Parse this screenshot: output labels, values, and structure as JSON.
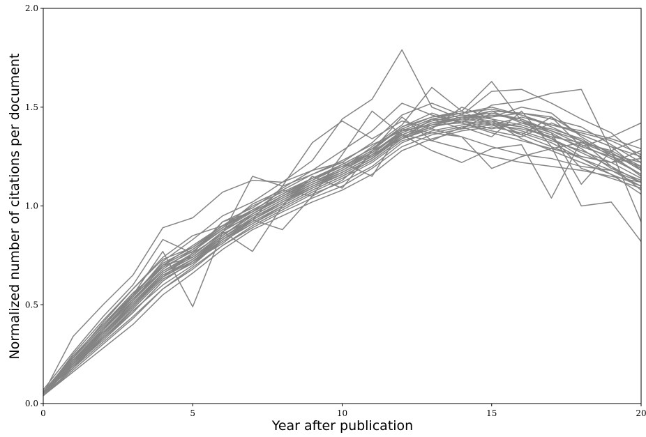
{
  "chart_data": {
    "type": "line",
    "title": "",
    "xlabel": "Year after publication",
    "ylabel": "Normalized number of citations per document",
    "xlim": [
      0,
      20
    ],
    "ylim": [
      0.0,
      2.0
    ],
    "x_ticks": [
      0,
      5,
      10,
      15,
      20
    ],
    "x_tick_labels": [
      "0",
      "5",
      "10",
      "15",
      "20"
    ],
    "y_ticks": [
      0.0,
      0.5,
      1.0,
      1.5,
      2.0
    ],
    "y_tick_labels": [
      "0.0",
      "0.5",
      "1.0",
      "1.5",
      "2.0"
    ],
    "grid": false,
    "legend": "none",
    "line_color": "#848484",
    "x": [
      0,
      1,
      2,
      3,
      4,
      5,
      6,
      7,
      8,
      9,
      10,
      11,
      12,
      13,
      14,
      15,
      16,
      17,
      18,
      19,
      20
    ],
    "series": [
      {
        "values": [
          0.05,
          0.2,
          0.33,
          0.46,
          0.62,
          0.72,
          0.84,
          0.94,
          1.02,
          1.09,
          1.16,
          1.24,
          1.36,
          1.42,
          1.45,
          1.47,
          1.44,
          1.38,
          1.31,
          1.24,
          1.16
        ]
      },
      {
        "values": [
          0.06,
          0.22,
          0.36,
          0.5,
          0.66,
          0.75,
          0.87,
          0.96,
          1.04,
          1.12,
          1.18,
          1.26,
          1.38,
          1.44,
          1.47,
          1.49,
          1.46,
          1.4,
          1.33,
          1.27,
          1.19
        ]
      },
      {
        "values": [
          0.04,
          0.17,
          0.3,
          0.43,
          0.58,
          0.69,
          0.8,
          0.9,
          0.98,
          1.06,
          1.12,
          1.2,
          1.32,
          1.38,
          1.41,
          1.43,
          1.4,
          1.34,
          1.27,
          1.2,
          1.12
        ]
      },
      {
        "values": [
          0.05,
          0.34,
          0.5,
          0.65,
          0.89,
          0.94,
          1.07,
          1.13,
          1.12,
          1.23,
          1.44,
          1.54,
          1.79,
          1.5,
          1.44,
          1.48,
          1.47,
          1.45,
          1.36,
          1.3,
          1.18
        ]
      },
      {
        "values": [
          0.07,
          0.26,
          0.44,
          0.6,
          0.83,
          0.76,
          0.92,
          0.99,
          1.09,
          1.18,
          1.22,
          1.32,
          1.46,
          1.52,
          1.46,
          1.58,
          1.59,
          1.52,
          1.44,
          1.37,
          1.24
        ]
      },
      {
        "values": [
          0.05,
          0.2,
          0.37,
          0.55,
          0.77,
          0.49,
          0.87,
          0.77,
          1.0,
          1.15,
          1.09,
          1.28,
          1.45,
          1.33,
          1.4,
          1.35,
          1.48,
          1.3,
          1.0,
          1.02,
          0.82
        ]
      },
      {
        "values": [
          0.06,
          0.23,
          0.41,
          0.58,
          0.74,
          0.85,
          0.9,
          1.0,
          1.07,
          1.14,
          1.2,
          1.28,
          1.4,
          1.47,
          1.42,
          1.51,
          1.53,
          1.57,
          1.59,
          1.28,
          0.92
        ]
      },
      {
        "values": [
          0.05,
          0.19,
          0.32,
          0.46,
          0.62,
          0.72,
          0.81,
          0.93,
          1.1,
          1.32,
          1.43,
          1.34,
          1.43,
          1.39,
          1.5,
          1.44,
          1.36,
          1.45,
          1.3,
          1.35,
          1.42
        ]
      },
      {
        "values": [
          0.05,
          0.21,
          0.36,
          0.5,
          0.64,
          0.73,
          0.85,
          0.96,
          1.05,
          1.12,
          1.19,
          1.3,
          1.41,
          1.6,
          1.48,
          1.63,
          1.43,
          1.34,
          1.25,
          1.22,
          1.28
        ]
      },
      {
        "values": [
          0.04,
          0.16,
          0.28,
          0.4,
          0.55,
          0.66,
          0.78,
          0.88,
          0.95,
          1.02,
          1.08,
          1.16,
          1.28,
          1.34,
          1.38,
          1.4,
          1.37,
          1.32,
          1.24,
          1.18,
          1.1
        ]
      },
      {
        "values": [
          0.06,
          0.24,
          0.4,
          0.55,
          0.7,
          0.8,
          0.9,
          0.98,
          1.06,
          1.13,
          1.2,
          1.27,
          1.37,
          1.43,
          1.46,
          1.44,
          1.41,
          1.36,
          1.3,
          1.25,
          1.2
        ]
      },
      {
        "values": [
          0.05,
          0.22,
          0.38,
          0.53,
          0.68,
          0.78,
          0.88,
          0.95,
          1.03,
          1.1,
          1.17,
          1.25,
          1.35,
          1.4,
          1.43,
          1.45,
          1.5,
          1.47,
          1.35,
          1.26,
          1.15
        ]
      },
      {
        "values": [
          0.06,
          0.2,
          0.35,
          0.52,
          0.7,
          0.74,
          0.86,
          1.15,
          1.1,
          1.16,
          1.22,
          1.15,
          1.39,
          1.37,
          1.35,
          1.3,
          1.26,
          1.24,
          1.2,
          1.18,
          1.12
        ]
      },
      {
        "values": [
          0.04,
          0.18,
          0.34,
          0.49,
          0.64,
          0.76,
          0.92,
          0.97,
          1.08,
          1.05,
          1.26,
          1.48,
          1.36,
          1.28,
          1.22,
          1.29,
          1.31,
          1.04,
          1.33,
          1.2,
          1.08
        ]
      },
      {
        "values": [
          0.06,
          0.21,
          0.38,
          0.54,
          0.72,
          0.83,
          0.95,
          1.02,
          1.12,
          1.18,
          1.28,
          1.38,
          1.52,
          1.46,
          1.42,
          1.37,
          1.33,
          1.29,
          1.25,
          1.22,
          1.24
        ]
      },
      {
        "values": [
          0.05,
          0.19,
          0.33,
          0.47,
          0.6,
          0.7,
          0.83,
          0.91,
          0.99,
          1.07,
          1.14,
          1.22,
          1.33,
          1.37,
          1.4,
          1.42,
          1.38,
          1.33,
          1.28,
          1.22,
          1.14
        ]
      },
      {
        "values": [
          0.05,
          0.25,
          0.42,
          0.58,
          0.73,
          0.79,
          0.89,
          1.01,
          1.08,
          1.16,
          1.23,
          1.31,
          1.38,
          1.41,
          1.44,
          1.46,
          1.44,
          1.37,
          1.11,
          1.28,
          1.34
        ]
      },
      {
        "values": [
          0.06,
          0.18,
          0.31,
          0.44,
          0.58,
          0.68,
          0.8,
          0.89,
          0.97,
          1.04,
          1.1,
          1.19,
          1.3,
          1.36,
          1.39,
          1.41,
          1.36,
          1.3,
          1.24,
          1.16,
          1.06
        ]
      },
      {
        "values": [
          0.05,
          0.23,
          0.39,
          0.55,
          0.71,
          0.79,
          0.9,
          0.97,
          1.05,
          1.13,
          1.21,
          1.29,
          1.39,
          1.45,
          1.48,
          1.41,
          1.45,
          1.41,
          1.38,
          1.34,
          1.29
        ]
      },
      {
        "values": [
          0.04,
          0.2,
          0.34,
          0.5,
          0.65,
          0.73,
          0.84,
          0.93,
          1.01,
          1.09,
          1.16,
          1.24,
          1.35,
          1.41,
          1.42,
          1.38,
          1.35,
          1.42,
          1.36,
          1.3,
          1.25
        ]
      },
      {
        "values": [
          0.06,
          0.22,
          0.37,
          0.52,
          0.67,
          0.76,
          0.86,
          0.93,
          0.88,
          1.05,
          1.13,
          1.26,
          1.34,
          1.44,
          1.43,
          1.39,
          1.42,
          1.37,
          1.29,
          1.19,
          1.13
        ]
      },
      {
        "values": [
          0.05,
          0.24,
          0.4,
          0.56,
          0.69,
          0.77,
          0.88,
          0.98,
          1.06,
          1.14,
          1.2,
          1.28,
          1.36,
          1.42,
          1.45,
          1.43,
          1.34,
          1.28,
          1.22,
          1.16,
          1.1
        ]
      },
      {
        "values": [
          0.05,
          0.2,
          0.36,
          0.51,
          0.66,
          0.74,
          0.85,
          0.95,
          1.03,
          1.11,
          1.17,
          1.25,
          1.37,
          1.43,
          1.46,
          1.45,
          1.47,
          1.44,
          1.4,
          1.31,
          1.22
        ]
      },
      {
        "values": [
          0.06,
          0.19,
          0.33,
          0.48,
          0.63,
          0.71,
          0.82,
          0.91,
          1.0,
          1.08,
          1.15,
          1.23,
          1.34,
          1.4,
          1.43,
          1.41,
          1.39,
          1.35,
          1.32,
          1.28,
          1.2
        ]
      },
      {
        "values": [
          0.05,
          0.21,
          0.37,
          0.53,
          0.67,
          0.75,
          0.87,
          0.96,
          1.04,
          1.11,
          1.18,
          1.27,
          1.38,
          1.44,
          1.39,
          1.47,
          1.43,
          1.38,
          1.33,
          1.27,
          1.18
        ]
      },
      {
        "values": [
          0.04,
          0.18,
          0.33,
          0.48,
          0.63,
          0.71,
          0.83,
          0.93,
          1.02,
          1.1,
          1.16,
          1.24,
          1.36,
          1.33,
          1.29,
          1.25,
          1.22,
          1.2,
          1.18,
          1.15,
          1.12
        ]
      },
      {
        "values": [
          0.06,
          0.23,
          0.39,
          0.55,
          0.7,
          0.78,
          0.89,
          0.98,
          1.06,
          1.14,
          1.21,
          1.29,
          1.4,
          1.45,
          1.47,
          1.5,
          1.46,
          1.41,
          1.37,
          1.33,
          1.26
        ]
      },
      {
        "values": [
          0.05,
          0.2,
          0.35,
          0.5,
          0.65,
          0.73,
          0.84,
          0.94,
          1.02,
          1.1,
          1.17,
          1.25,
          1.36,
          1.42,
          1.44,
          1.42,
          1.4,
          1.35,
          1.19,
          1.14,
          1.09
        ]
      },
      {
        "values": [
          0.05,
          0.22,
          0.38,
          0.54,
          0.69,
          0.77,
          0.88,
          0.97,
          1.05,
          1.12,
          1.19,
          1.27,
          1.38,
          1.41,
          1.45,
          1.48,
          1.42,
          1.39,
          1.34,
          1.25,
          1.16
        ]
      },
      {
        "values": [
          0.06,
          0.19,
          0.34,
          0.49,
          0.64,
          0.72,
          0.83,
          0.92,
          1.0,
          1.08,
          1.15,
          1.23,
          1.34,
          1.39,
          1.35,
          1.19,
          1.25,
          1.29,
          1.32,
          1.26,
          1.22
        ]
      }
    ]
  }
}
